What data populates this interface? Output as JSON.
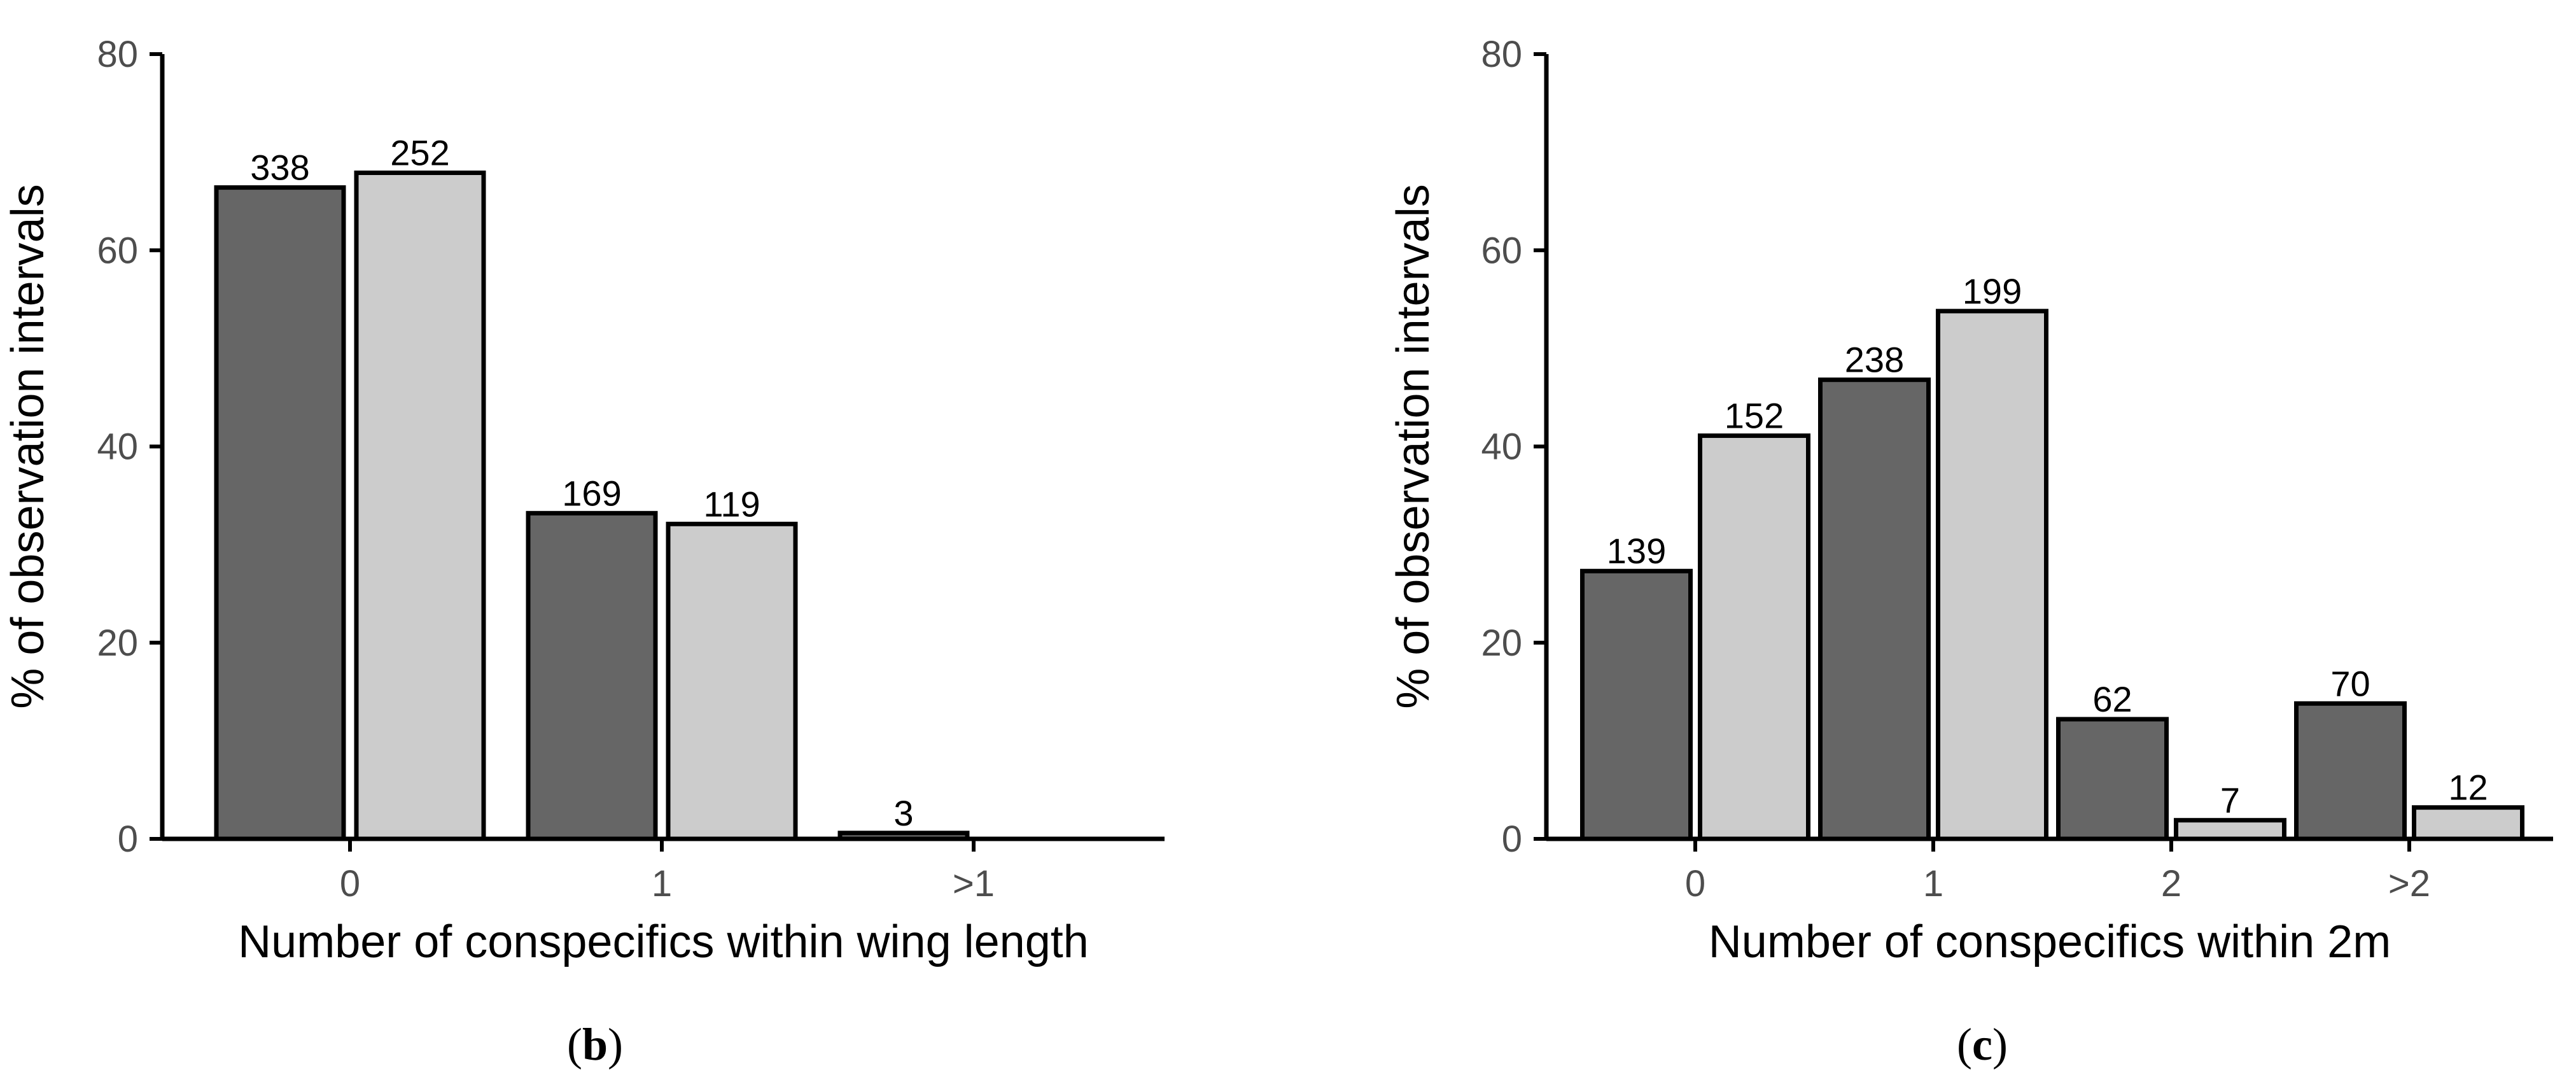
{
  "chart_data": [
    {
      "type": "bar",
      "panel_label": "b",
      "categories": [
        "0",
        "1",
        ">1"
      ],
      "xlabel": "Number of conspecifics within wing length",
      "ylabel": "% of observation intervals",
      "ylim": [
        0,
        80
      ],
      "yticks": [
        0,
        20,
        40,
        60,
        80
      ],
      "grid": false,
      "series": [
        {
          "color": "#666666",
          "values": [
            66.4,
            33.2,
            0.6
          ],
          "labels": [
            "338",
            "169",
            "3"
          ]
        },
        {
          "color": "#cccccc",
          "values": [
            67.9,
            32.1,
            null
          ],
          "labels": [
            "252",
            "119",
            null
          ]
        }
      ]
    },
    {
      "type": "bar",
      "panel_label": "c",
      "categories": [
        "0",
        "1",
        "2",
        ">2"
      ],
      "xlabel": "Number of conspecifics within 2m",
      "ylabel": "% of observation intervals",
      "ylim": [
        0,
        80
      ],
      "yticks": [
        0,
        20,
        40,
        60,
        80
      ],
      "grid": false,
      "series": [
        {
          "color": "#666666",
          "values": [
            27.3,
            46.8,
            12.2,
            13.8
          ],
          "labels": [
            "139",
            "238",
            "62",
            "70"
          ]
        },
        {
          "color": "#cccccc",
          "values": [
            41.1,
            53.8,
            1.9,
            3.2
          ],
          "labels": [
            "152",
            "199",
            "7",
            "12"
          ]
        }
      ]
    }
  ]
}
